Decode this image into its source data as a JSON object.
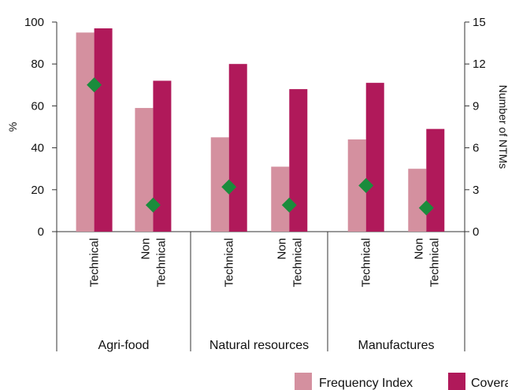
{
  "chart_data": {
    "type": "bar",
    "title": "",
    "ylabel_left": "%",
    "ylabel_right": "Number of NTMs",
    "ylim_left": [
      0,
      100
    ],
    "ylim_right": [
      0,
      15
    ],
    "yticks_left": [
      "0",
      "20",
      "40",
      "60",
      "80",
      "100"
    ],
    "yticks_right": [
      "0",
      "3",
      "6",
      "9",
      "12",
      "15"
    ],
    "groups": [
      "Agri-food",
      "Natural resources",
      "Manufactures"
    ],
    "categories": [
      [
        "Technical"
      ],
      [
        "Non",
        "Technical"
      ],
      [
        "Technical"
      ],
      [
        "Non",
        "Technical"
      ],
      [
        "Technical"
      ],
      [
        "Non",
        "Technical"
      ]
    ],
    "series": [
      {
        "name": "Frequency Index",
        "axis": "left",
        "color": "#d4909f",
        "values": [
          95,
          59,
          45,
          31,
          44,
          30
        ]
      },
      {
        "name": "Coverage Ratio",
        "axis": "left",
        "color": "#b0195a",
        "values": [
          97,
          72,
          80,
          68,
          71,
          49
        ]
      },
      {
        "name": "",
        "axis": "right",
        "marker": "diamond",
        "color": "#1a8c3c",
        "values": [
          10.5,
          1.9,
          3.2,
          1.9,
          3.3,
          1.7
        ]
      }
    ],
    "legend": {
      "placement": "bottom-right",
      "entries": [
        "Frequency Index",
        "Coverage Ratio"
      ]
    },
    "grid": false
  }
}
